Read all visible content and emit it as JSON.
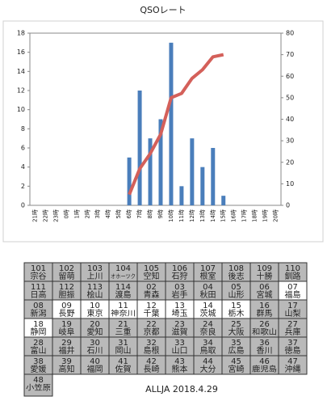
{
  "chart_data": {
    "type": "bar",
    "title": "QSOレート",
    "categories": [
      "21時",
      "22時",
      "23時",
      "0時",
      "1時",
      "2時",
      "3時",
      "4時",
      "5時",
      "6時",
      "7時",
      "8時",
      "9時",
      "10時",
      "11時",
      "12時",
      "13時",
      "14時",
      "15時",
      "16時",
      "17時",
      "18時",
      "19時",
      "20時"
    ],
    "series": [
      {
        "type": "bar",
        "color": "#4a7ebb",
        "values": [
          0,
          0,
          0,
          0,
          0,
          0,
          0,
          0,
          0,
          5,
          12,
          7,
          9,
          17,
          2,
          7,
          4,
          6,
          1,
          0,
          0,
          0,
          0,
          0
        ]
      },
      {
        "type": "line",
        "axis": "y2",
        "color": "#d4605a",
        "values": [
          null,
          null,
          null,
          null,
          null,
          null,
          null,
          null,
          null,
          5,
          17,
          24,
          33,
          50,
          52,
          59,
          63,
          69,
          70,
          null,
          null,
          null,
          null,
          null
        ]
      }
    ],
    "ylim": [
      0,
      18
    ],
    "yticks": [
      0,
      2,
      4,
      6,
      8,
      10,
      12,
      14,
      16,
      18
    ],
    "y2lim": [
      0,
      80
    ],
    "y2ticks": [
      0,
      10,
      20,
      30,
      40,
      50,
      60,
      70,
      80
    ],
    "grid": false
  },
  "table": {
    "worked_color": "#ffffff",
    "unworked_color": "#b9b9b9",
    "rows": [
      [
        {
          "code": "101",
          "name": "宗谷",
          "worked": false
        },
        {
          "code": "102",
          "name": "留萌",
          "worked": false
        },
        {
          "code": "103",
          "name": "上川",
          "worked": false
        },
        {
          "code": "104",
          "name": "オホーツク",
          "worked": false
        },
        {
          "code": "105",
          "name": "空知",
          "worked": false
        },
        {
          "code": "106",
          "name": "石狩",
          "worked": false
        },
        {
          "code": "107",
          "name": "根室",
          "worked": false
        },
        {
          "code": "108",
          "name": "後志",
          "worked": false
        },
        {
          "code": "109",
          "name": "十勝",
          "worked": false
        },
        {
          "code": "110",
          "name": "釧路",
          "worked": false
        }
      ],
      [
        {
          "code": "111",
          "name": "日高",
          "worked": false
        },
        {
          "code": "112",
          "name": "胆振",
          "worked": false
        },
        {
          "code": "113",
          "name": "桧山",
          "worked": false
        },
        {
          "code": "114",
          "name": "渡島",
          "worked": false
        },
        {
          "code": "02",
          "name": "青森",
          "worked": false
        },
        {
          "code": "03",
          "name": "岩手",
          "worked": false
        },
        {
          "code": "04",
          "name": "秋田",
          "worked": false
        },
        {
          "code": "05",
          "name": "山形",
          "worked": false
        },
        {
          "code": "06",
          "name": "宮城",
          "worked": false
        },
        {
          "code": "07",
          "name": "福島",
          "worked": true
        }
      ],
      [
        {
          "code": "08",
          "name": "新潟",
          "worked": false
        },
        {
          "code": "09",
          "name": "長野",
          "worked": true
        },
        {
          "code": "10",
          "name": "東京",
          "worked": true
        },
        {
          "code": "11",
          "name": "神奈川",
          "worked": true
        },
        {
          "code": "12",
          "name": "千葉",
          "worked": true
        },
        {
          "code": "13",
          "name": "埼玉",
          "worked": true
        },
        {
          "code": "14",
          "name": "茨城",
          "worked": true
        },
        {
          "code": "15",
          "name": "栃木",
          "worked": true
        },
        {
          "code": "16",
          "name": "群馬",
          "worked": false
        },
        {
          "code": "17",
          "name": "山梨",
          "worked": false
        }
      ],
      [
        {
          "code": "18",
          "name": "静岡",
          "worked": true
        },
        {
          "code": "19",
          "name": "岐阜",
          "worked": false
        },
        {
          "code": "20",
          "name": "愛知",
          "worked": false
        },
        {
          "code": "21",
          "name": "三重",
          "worked": false
        },
        {
          "code": "22",
          "name": "京都",
          "worked": false
        },
        {
          "code": "23",
          "name": "滋賀",
          "worked": false
        },
        {
          "code": "24",
          "name": "奈良",
          "worked": false
        },
        {
          "code": "25",
          "name": "大阪",
          "worked": false
        },
        {
          "code": "26",
          "name": "和歌山",
          "worked": false
        },
        {
          "code": "27",
          "name": "兵庫",
          "worked": false
        }
      ],
      [
        {
          "code": "28",
          "name": "富山",
          "worked": false
        },
        {
          "code": "29",
          "name": "福井",
          "worked": false
        },
        {
          "code": "30",
          "name": "石川",
          "worked": false
        },
        {
          "code": "31",
          "name": "岡山",
          "worked": false
        },
        {
          "code": "32",
          "name": "島根",
          "worked": false
        },
        {
          "code": "33",
          "name": "山口",
          "worked": false
        },
        {
          "code": "34",
          "name": "鳥取",
          "worked": false
        },
        {
          "code": "35",
          "name": "広島",
          "worked": false
        },
        {
          "code": "36",
          "name": "香川",
          "worked": false
        },
        {
          "code": "37",
          "name": "徳島",
          "worked": false
        }
      ],
      [
        {
          "code": "38",
          "name": "愛媛",
          "worked": false
        },
        {
          "code": "39",
          "name": "高知",
          "worked": false
        },
        {
          "code": "40",
          "name": "福岡",
          "worked": false
        },
        {
          "code": "41",
          "name": "佐賀",
          "worked": false
        },
        {
          "code": "42",
          "name": "長崎",
          "worked": false
        },
        {
          "code": "43",
          "name": "熊本",
          "worked": false
        },
        {
          "code": "44",
          "name": "大分",
          "worked": false
        },
        {
          "code": "45",
          "name": "宮崎",
          "worked": false
        },
        {
          "code": "46",
          "name": "鹿児島",
          "worked": false
        },
        {
          "code": "47",
          "name": "沖縄",
          "worked": false
        }
      ],
      [
        {
          "code": "48",
          "name": "小笠原",
          "worked": false
        }
      ]
    ]
  },
  "footer": "ALLJA 2018.4.29"
}
